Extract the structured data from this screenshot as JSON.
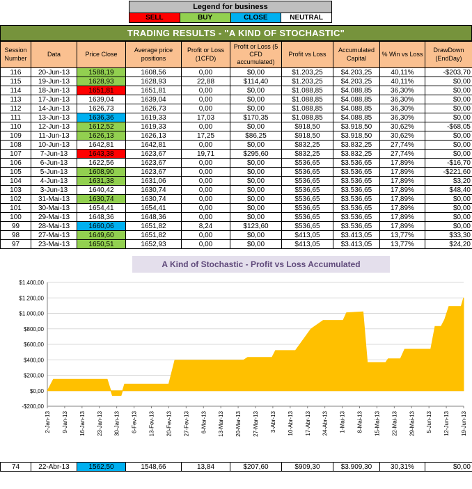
{
  "legend": {
    "title": "Legend for business",
    "items": [
      {
        "label": "SELL",
        "color": "#FF0000"
      },
      {
        "label": "BUY",
        "color": "#92D050"
      },
      {
        "label": "CLOSE",
        "color": "#00B0F0"
      },
      {
        "label": "NEUTRAL",
        "color": "#FFFFFF"
      }
    ]
  },
  "title_bar": {
    "text": "TRADING RESULTS - \"A KIND OF STOCHASTIC\""
  },
  "colors": {
    "sell": "#FF0000",
    "buy": "#92D050",
    "close": "#00B0F0",
    "header_fill": "#FAC090",
    "title_bar": "#76933C",
    "chart_fill": "#FFC000",
    "chart_title_bg": "#E4DFEC",
    "chart_title_text": "#604A7B"
  },
  "table": {
    "headers": [
      "Session Number",
      "Data",
      "Price Close",
      "Average price positions",
      "Profit or Loss (1CFD)",
      "Profit or Loss (5 CFD accumulated)",
      "Profit vs Loss",
      "Accumulated Capital",
      "% Win vs Loss",
      "DrawDown (EndDay)"
    ],
    "rows": [
      {
        "session": "116",
        "date": "20-Jun-13",
        "price_close": "1588,19",
        "price_close_color": "buy",
        "average_price": "1608,56",
        "pl_1cfd": "0,00",
        "pl_5cfd": "$0,00",
        "profit_vs_loss": "$1.203,25",
        "accumulated_capital": "$4.203,25",
        "win_pct": "40,11%",
        "drawdown": "-$203,70"
      },
      {
        "session": "115",
        "date": "19-Jun-13",
        "price_close": "1628,93",
        "price_close_color": "buy",
        "average_price": "1628,93",
        "pl_1cfd": "22,88",
        "pl_5cfd": "$114,40",
        "profit_vs_loss": "$1.203,25",
        "accumulated_capital": "$4.203,25",
        "win_pct": "40,11%",
        "drawdown": "$0,00"
      },
      {
        "session": "114",
        "date": "18-Jun-13",
        "price_close": "1651,81",
        "price_close_color": "sell",
        "average_price": "1651,81",
        "pl_1cfd": "0,00",
        "pl_5cfd": "$0,00",
        "profit_vs_loss": "$1.088,85",
        "accumulated_capital": "$4.088,85",
        "win_pct": "36,30%",
        "drawdown": "$0,00"
      },
      {
        "session": "113",
        "date": "17-Jun-13",
        "price_close": "1639,04",
        "price_close_color": "neutral",
        "average_price": "1639,04",
        "pl_1cfd": "0,00",
        "pl_5cfd": "$0,00",
        "profit_vs_loss": "$1.088,85",
        "accumulated_capital": "$4.088,85",
        "win_pct": "36,30%",
        "drawdown": "$0,00"
      },
      {
        "session": "112",
        "date": "14-Jun-13",
        "price_close": "1626,73",
        "price_close_color": "neutral",
        "average_price": "1626,73",
        "pl_1cfd": "0,00",
        "pl_5cfd": "$0,00",
        "profit_vs_loss": "$1.088,85",
        "accumulated_capital": "$4.088,85",
        "win_pct": "36,30%",
        "drawdown": "$0,00"
      },
      {
        "session": "111",
        "date": "13-Jun-13",
        "price_close": "1636,36",
        "price_close_color": "close",
        "average_price": "1619,33",
        "pl_1cfd": "17,03",
        "pl_5cfd": "$170,35",
        "profit_vs_loss": "$1.088,85",
        "accumulated_capital": "$4.088,85",
        "win_pct": "36,30%",
        "drawdown": "$0,00"
      },
      {
        "session": "110",
        "date": "12-Jun-13",
        "price_close": "1612,52",
        "price_close_color": "buy",
        "average_price": "1619,33",
        "pl_1cfd": "0,00",
        "pl_5cfd": "$0,00",
        "profit_vs_loss": "$918,50",
        "accumulated_capital": "$3.918,50",
        "win_pct": "30,62%",
        "drawdown": "-$68,05"
      },
      {
        "session": "109",
        "date": "11-Jun-13",
        "price_close": "1626,13",
        "price_close_color": "buy",
        "average_price": "1626,13",
        "pl_1cfd": "17,25",
        "pl_5cfd": "$86,25",
        "profit_vs_loss": "$918,50",
        "accumulated_capital": "$3.918,50",
        "win_pct": "30,62%",
        "drawdown": "$0,00"
      },
      {
        "session": "108",
        "date": "10-Jun-13",
        "price_close": "1642,81",
        "price_close_color": "neutral",
        "average_price": "1642,81",
        "pl_1cfd": "0,00",
        "pl_5cfd": "$0,00",
        "profit_vs_loss": "$832,25",
        "accumulated_capital": "$3.832,25",
        "win_pct": "27,74%",
        "drawdown": "$0,00"
      },
      {
        "session": "107",
        "date": "7-Jun-13",
        "price_close": "1643,38",
        "price_close_color": "sell",
        "average_price": "1623,67",
        "pl_1cfd": "19,71",
        "pl_5cfd": "$295,60",
        "profit_vs_loss": "$832,25",
        "accumulated_capital": "$3.832,25",
        "win_pct": "27,74%",
        "drawdown": "$0,00"
      },
      {
        "session": "106",
        "date": "6-Jun-13",
        "price_close": "1622,56",
        "price_close_color": "neutral",
        "average_price": "1623,67",
        "pl_1cfd": "0,00",
        "pl_5cfd": "$0,00",
        "profit_vs_loss": "$536,65",
        "accumulated_capital": "$3.536,65",
        "win_pct": "17,89%",
        "drawdown": "-$16,70"
      },
      {
        "session": "105",
        "date": "5-Jun-13",
        "price_close": "1608,90",
        "price_close_color": "buy",
        "average_price": "1623,67",
        "pl_1cfd": "0,00",
        "pl_5cfd": "$0,00",
        "profit_vs_loss": "$536,65",
        "accumulated_capital": "$3.536,65",
        "win_pct": "17,89%",
        "drawdown": "-$221,60"
      },
      {
        "session": "104",
        "date": "4-Jun-13",
        "price_close": "1631,38",
        "price_close_color": "buy",
        "average_price": "1631,06",
        "pl_1cfd": "0,00",
        "pl_5cfd": "$0,00",
        "profit_vs_loss": "$536,65",
        "accumulated_capital": "$3.536,65",
        "win_pct": "17,89%",
        "drawdown": "$3,20"
      },
      {
        "session": "103",
        "date": "3-Jun-13",
        "price_close": "1640,42",
        "price_close_color": "neutral",
        "average_price": "1630,74",
        "pl_1cfd": "0,00",
        "pl_5cfd": "$0,00",
        "profit_vs_loss": "$536,65",
        "accumulated_capital": "$3.536,65",
        "win_pct": "17,89%",
        "drawdown": "$48,40"
      },
      {
        "session": "102",
        "date": "31-Mai-13",
        "price_close": "1630,74",
        "price_close_color": "buy",
        "average_price": "1630,74",
        "pl_1cfd": "0,00",
        "pl_5cfd": "$0,00",
        "profit_vs_loss": "$536,65",
        "accumulated_capital": "$3.536,65",
        "win_pct": "17,89%",
        "drawdown": "$0,00"
      },
      {
        "session": "101",
        "date": "30-Mai-13",
        "price_close": "1654,41",
        "price_close_color": "neutral",
        "average_price": "1654,41",
        "pl_1cfd": "0,00",
        "pl_5cfd": "$0,00",
        "profit_vs_loss": "$536,65",
        "accumulated_capital": "$3.536,65",
        "win_pct": "17,89%",
        "drawdown": "$0,00"
      },
      {
        "session": "100",
        "date": "29-Mai-13",
        "price_close": "1648,36",
        "price_close_color": "neutral",
        "average_price": "1648,36",
        "pl_1cfd": "0,00",
        "pl_5cfd": "$0,00",
        "profit_vs_loss": "$536,65",
        "accumulated_capital": "$3.536,65",
        "win_pct": "17,89%",
        "drawdown": "$0,00"
      },
      {
        "session": "99",
        "date": "28-Mai-13",
        "price_close": "1660,06",
        "price_close_color": "close",
        "average_price": "1651,82",
        "pl_1cfd": "8,24",
        "pl_5cfd": "$123,60",
        "profit_vs_loss": "$536,65",
        "accumulated_capital": "$3.536,65",
        "win_pct": "17,89%",
        "drawdown": "$0,00"
      },
      {
        "session": "98",
        "date": "27-Mai-13",
        "price_close": "1649,60",
        "price_close_color": "buy",
        "average_price": "1651,82",
        "pl_1cfd": "0,00",
        "pl_5cfd": "$0,00",
        "profit_vs_loss": "$413,05",
        "accumulated_capital": "$3.413,05",
        "win_pct": "13,77%",
        "drawdown": "$33,30"
      },
      {
        "session": "97",
        "date": "23-Mai-13",
        "price_close": "1650,51",
        "price_close_color": "buy",
        "average_price": "1652,93",
        "pl_1cfd": "0,00",
        "pl_5cfd": "$0,00",
        "profit_vs_loss": "$413,05",
        "accumulated_capital": "$3.413,05",
        "win_pct": "13,77%",
        "drawdown": "$24,20"
      }
    ]
  },
  "summary_row": {
    "session": "74",
    "date": "22-Abr-13",
    "price_close": "1562,50",
    "price_close_color": "close",
    "average_price": "1548,66",
    "pl_1cfd": "13,84",
    "pl_5cfd": "$207,60",
    "profit_vs_loss": "$909,30",
    "accumulated_capital": "$3.909,30",
    "win_pct": "30,31%",
    "drawdown": "$0,00"
  },
  "chart_data": {
    "type": "area",
    "title": "A Kind of Stochastic - Profit vs Loss Accumulated",
    "xlabel": "",
    "ylabel": "",
    "ylim": [
      -200,
      1400
    ],
    "y_tick_step": 200,
    "y_tick_labels": [
      "$1.400,00",
      "$1.200,00",
      "$1.000,00",
      "$800,00",
      "$600,00",
      "$400,00",
      "$200,00",
      "$0,00",
      "-$200,00"
    ],
    "x_labels": [
      "2-Jan-13",
      "9-Jan-13",
      "16-Jan-13",
      "23-Jan-13",
      "30-Jan-13",
      "6-Fev-13",
      "13-Fev-13",
      "20-Fev-13",
      "27-Fev-13",
      "6-Mar-13",
      "13-Mar-13",
      "20-Mar-13",
      "27-Mar-13",
      "3-Abr-13",
      "10-Abr-13",
      "17-Abr-13",
      "24-Abr-13",
      "1-Mai-13",
      "8-Mai-13",
      "15-Mai-13",
      "22-Mai-13",
      "29-Mai-13",
      "5-Jun-13",
      "12-Jun-13",
      "19-Jun-13"
    ],
    "grid": "horizontal",
    "legend_position": "none",
    "fill_color": "#FFC000",
    "baseline": 0,
    "series": [
      {
        "name": "Profit vs Loss Accumulated",
        "points": [
          [
            0,
            0
          ],
          [
            0.35,
            148
          ],
          [
            3.45,
            148
          ],
          [
            3.75,
            -62
          ],
          [
            4.25,
            -62
          ],
          [
            4.45,
            85
          ],
          [
            7.0,
            85
          ],
          [
            7.35,
            395
          ],
          [
            11.3,
            395
          ],
          [
            11.55,
            432
          ],
          [
            12.95,
            432
          ],
          [
            13.15,
            520
          ],
          [
            14.3,
            520
          ],
          [
            15.2,
            800
          ],
          [
            15.9,
            909
          ],
          [
            17.05,
            909
          ],
          [
            17.25,
            1008
          ],
          [
            18.2,
            1020
          ],
          [
            18.45,
            365
          ],
          [
            19.5,
            365
          ],
          [
            19.65,
            413
          ],
          [
            20.35,
            413
          ],
          [
            20.6,
            537
          ],
          [
            22.1,
            537
          ],
          [
            22.35,
            832
          ],
          [
            22.7,
            832
          ],
          [
            22.9,
            918
          ],
          [
            23.15,
            1089
          ],
          [
            23.85,
            1089
          ],
          [
            24,
            1203
          ]
        ]
      }
    ]
  }
}
